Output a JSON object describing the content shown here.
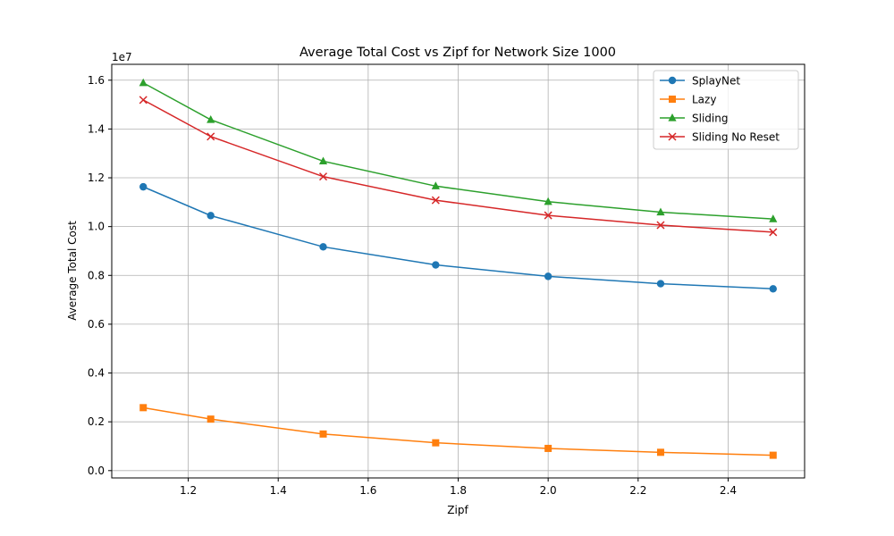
{
  "chart_data": {
    "type": "line",
    "title": "Average Total Cost vs Zipf for Network Size 1000",
    "xlabel": "Zipf",
    "ylabel": "Average Total Cost",
    "y_scale_label": "1e7",
    "y_multiplier": 10000000,
    "xlim": [
      1.03,
      2.57
    ],
    "ylim": [
      -0.03,
      1.665
    ],
    "x_ticks": [
      1.2,
      1.4,
      1.6,
      1.8,
      2.0,
      2.2,
      2.4
    ],
    "x_tick_labels": [
      "1.2",
      "1.4",
      "1.6",
      "1.8",
      "2.0",
      "2.2",
      "2.4"
    ],
    "y_ticks": [
      0.0,
      0.2,
      0.4,
      0.6,
      0.8,
      1.0,
      1.2,
      1.4,
      1.6
    ],
    "y_tick_labels": [
      "0.0",
      "0.2",
      "0.4",
      "0.6",
      "0.8",
      "1.0",
      "1.2",
      "1.4",
      "1.6"
    ],
    "grid": true,
    "legend_position": "top-right",
    "x": [
      1.1,
      1.25,
      1.5,
      1.75,
      2.0,
      2.25,
      2.5
    ],
    "series": [
      {
        "name": "SplayNet",
        "color": "#1f77b4",
        "marker": "circle",
        "values": [
          1.163,
          1.045,
          0.917,
          0.843,
          0.796,
          0.766,
          0.745
        ]
      },
      {
        "name": "Lazy",
        "color": "#ff7f0e",
        "marker": "square",
        "values": [
          0.258,
          0.211,
          0.15,
          0.114,
          0.091,
          0.075,
          0.063
        ]
      },
      {
        "name": "Sliding",
        "color": "#2ca02c",
        "marker": "triangle",
        "values": [
          1.589,
          1.438,
          1.268,
          1.166,
          1.102,
          1.059,
          1.031
        ]
      },
      {
        "name": "Sliding No Reset",
        "color": "#d62728",
        "marker": "x",
        "values": [
          1.519,
          1.369,
          1.205,
          1.108,
          1.046,
          1.006,
          0.977
        ]
      }
    ]
  }
}
